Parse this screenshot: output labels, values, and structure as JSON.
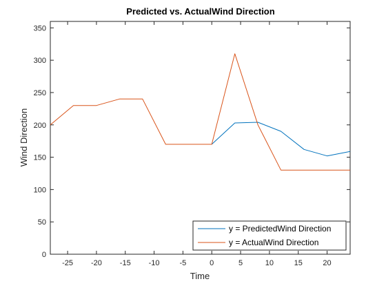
{
  "chart_data": {
    "type": "line",
    "title": "Predicted vs. ActualWind Direction",
    "xlabel": "Time",
    "ylabel": "Wind Direction",
    "xlim": [
      -28,
      24
    ],
    "ylim": [
      0,
      360
    ],
    "xticks": [
      -25,
      -20,
      -15,
      -10,
      -5,
      0,
      5,
      10,
      15,
      20
    ],
    "yticks": [
      0,
      50,
      100,
      150,
      200,
      250,
      300,
      350
    ],
    "grid": false,
    "legend_position": "bottom-right",
    "series": [
      {
        "name": "y = PredictedWind Direction",
        "color": "#0072BD",
        "x": [
          0,
          4,
          8,
          12,
          16,
          20,
          24
        ],
        "y": [
          170,
          203,
          204,
          190,
          162,
          152,
          159
        ]
      },
      {
        "name": "y = ActualWind Direction",
        "color": "#D95319",
        "x": [
          -28,
          -24,
          -20,
          -16,
          -12,
          -8,
          -4,
          0,
          4,
          8,
          12,
          16,
          20,
          24
        ],
        "y": [
          200,
          230,
          230,
          240,
          240,
          170,
          170,
          170,
          310,
          200,
          130,
          130,
          130,
          130
        ]
      }
    ]
  }
}
